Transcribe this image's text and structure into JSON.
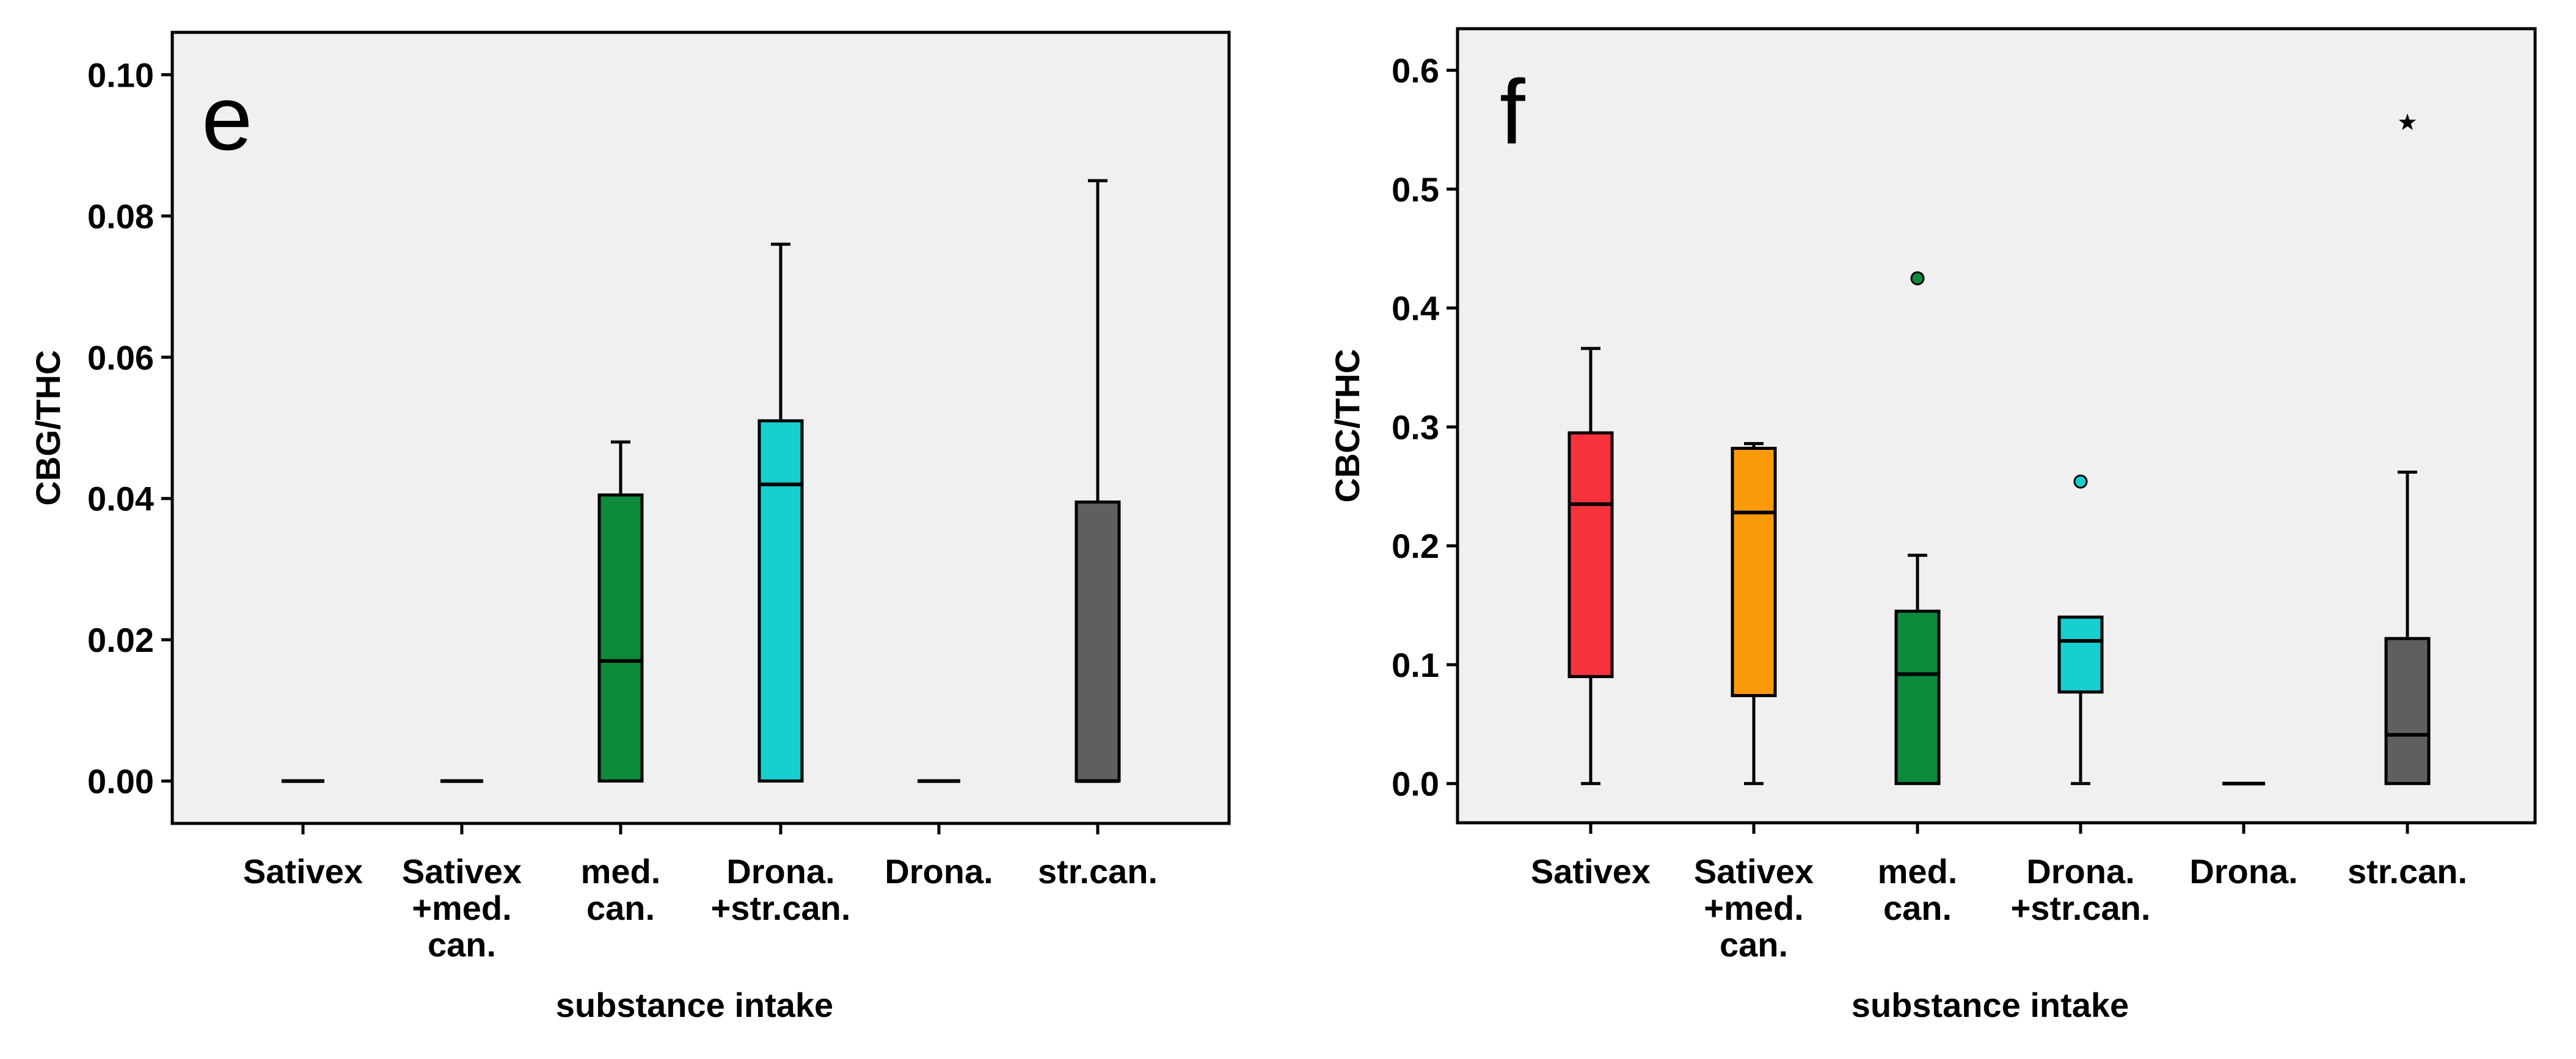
{
  "chart_data": [
    {
      "type": "box",
      "panel_label": "e",
      "xlabel": "substance intake",
      "ylabel": "CBG/THC",
      "ylim": [
        -0.006,
        0.106
      ],
      "yticks": [
        0.0,
        0.02,
        0.04,
        0.06,
        0.08,
        0.1
      ],
      "ytick_labels": [
        "0.00",
        "0.02",
        "0.04",
        "0.06",
        "0.08",
        "0.10"
      ],
      "grid": false,
      "categories": [
        [
          "Sativex"
        ],
        [
          "Sativex",
          "+med.",
          "can."
        ],
        [
          "med.",
          "can."
        ],
        [
          "Drona.",
          "+str.can."
        ],
        [
          "Drona."
        ],
        [
          "str.can."
        ]
      ],
      "boxes": [
        {
          "color": "#000000",
          "whisker_low": 0,
          "q1": 0,
          "median": 0,
          "q3": 0,
          "whisker_high": 0
        },
        {
          "color": "#000000",
          "whisker_low": 0,
          "q1": 0,
          "median": 0,
          "q3": 0,
          "whisker_high": 0
        },
        {
          "color": "#0d8a3a",
          "whisker_low": 0,
          "q1": 0,
          "median": 0.017,
          "q3": 0.0405,
          "whisker_high": 0.048
        },
        {
          "color": "#17cece",
          "whisker_low": 0,
          "q1": 0,
          "median": 0.042,
          "q3": 0.051,
          "whisker_high": 0.076
        },
        {
          "color": "#000000",
          "whisker_low": 0,
          "q1": 0,
          "median": 0,
          "q3": 0,
          "whisker_high": 0
        },
        {
          "color": "#5f5f5f",
          "whisker_low": 0,
          "q1": 0,
          "median": 0,
          "q3": 0.0395,
          "whisker_high": 0.085
        }
      ],
      "outliers": [],
      "extremes": []
    },
    {
      "type": "box",
      "panel_label": "f",
      "xlabel": "substance intake",
      "ylabel": "CBC/THC",
      "ylim": [
        -0.033,
        0.635
      ],
      "yticks": [
        0.0,
        0.1,
        0.2,
        0.3,
        0.4,
        0.5,
        0.6
      ],
      "ytick_labels": [
        "0.0",
        "0.1",
        "0.2",
        "0.3",
        "0.4",
        "0.5",
        "0.6"
      ],
      "grid": false,
      "categories": [
        [
          "Sativex"
        ],
        [
          "Sativex",
          "+med.",
          "can."
        ],
        [
          "med.",
          "can."
        ],
        [
          "Drona.",
          "+str.can."
        ],
        [
          "Drona."
        ],
        [
          "str.can."
        ]
      ],
      "boxes": [
        {
          "color": "#f8323c",
          "whisker_low": 0,
          "q1": 0.09,
          "median": 0.235,
          "q3": 0.295,
          "whisker_high": 0.366
        },
        {
          "color": "#fa9a0a",
          "whisker_low": 0,
          "q1": 0.074,
          "median": 0.228,
          "q3": 0.282,
          "whisker_high": 0.286
        },
        {
          "color": "#0d8a3a",
          "whisker_low": 0,
          "q1": 0,
          "median": 0.092,
          "q3": 0.145,
          "whisker_high": 0.192
        },
        {
          "color": "#17cece",
          "whisker_low": 0,
          "q1": 0.077,
          "median": 0.12,
          "q3": 0.14,
          "whisker_high": 0.14
        },
        {
          "color": "#000000",
          "whisker_low": 0,
          "q1": 0,
          "median": 0,
          "q3": 0,
          "whisker_high": 0
        },
        {
          "color": "#5f5f5f",
          "whisker_low": 0,
          "q1": 0,
          "median": 0.041,
          "q3": 0.122,
          "whisker_high": 0.262
        }
      ],
      "outliers": [
        {
          "category_index": 2,
          "value": 0.425,
          "color": "#0d8a3a"
        },
        {
          "category_index": 3,
          "value": 0.254,
          "color": "#17cece"
        }
      ],
      "extremes": [
        {
          "category_index": 5,
          "value": 0.556
        }
      ]
    }
  ]
}
